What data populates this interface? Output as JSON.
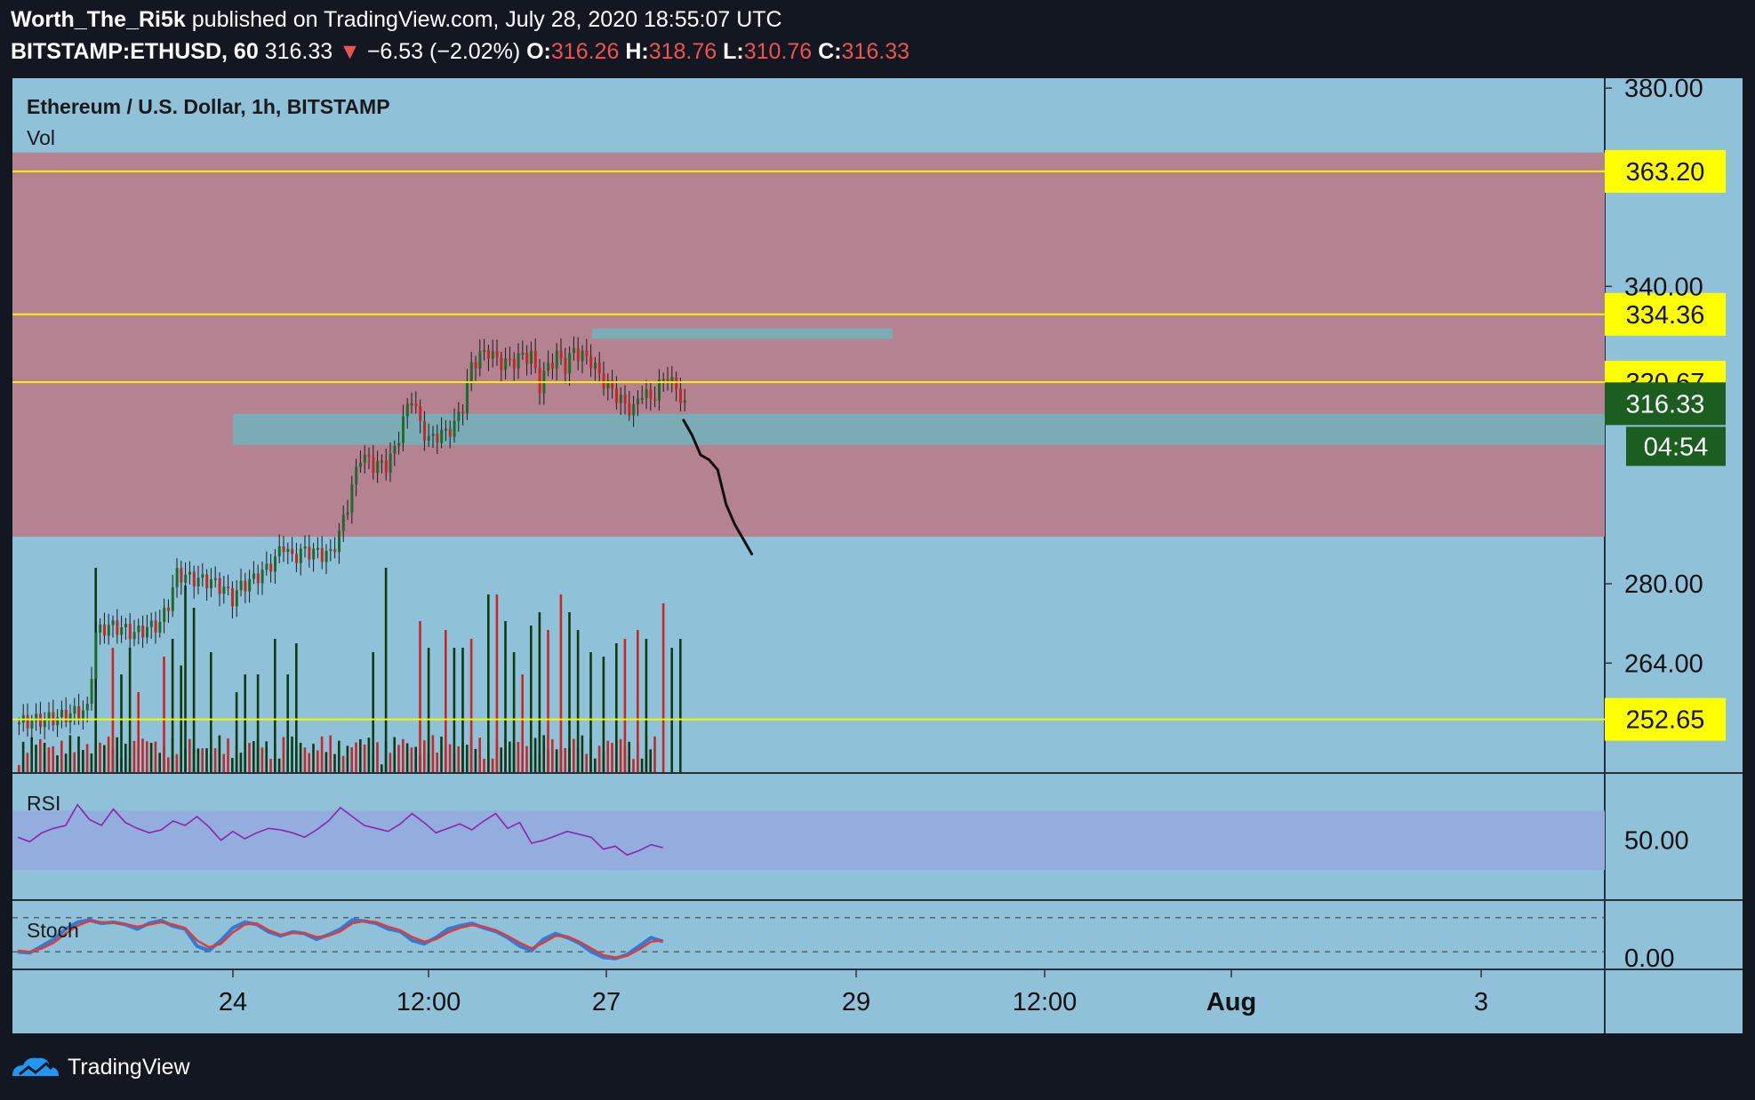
{
  "header": {
    "author": "Worth_The_Ri5k",
    "published_text": "published on TradingView.com, July 28, 2020 18:55:07 UTC",
    "symbol": "BITSTAMP:ETHUSD, 60",
    "last": "316.33",
    "arrow": "▼",
    "change": "−6.53 (−2.02%)",
    "o_label": "O:",
    "o": "316.26",
    "h_label": "H:",
    "h": "318.76",
    "l_label": "L:",
    "l": "310.76",
    "c_label": "C:",
    "c": "316.33"
  },
  "footer": {
    "brand": "TradingView",
    "logo_icon": "tradingview-logo-icon"
  },
  "colors": {
    "background": "#131722",
    "pane": "#8fc1d9",
    "resistance_zone": "#b48290",
    "support_box": "#78adb7",
    "level_line": "#f9f300",
    "up": "#1e6b2a",
    "down": "#c62828",
    "rsi": "#8e24aa",
    "rsi_band": "#93aede",
    "stoch_k": "#2f7bd6",
    "stoch_d": "#e53935",
    "current_price": "#1b5e20"
  },
  "chart_data": {
    "type": "candlestick",
    "title": "Ethereum / U.S. Dollar, 1h, BITSTAMP",
    "volume_label": "Vol",
    "y_ticks": [
      380,
      340,
      280,
      264
    ],
    "y_tick_labels": [
      "380.00",
      "340.00",
      "280.00",
      "264.00"
    ],
    "ylim": [
      242,
      382
    ],
    "x_ticks": [
      "24",
      "12:00",
      "27",
      "29",
      "12:00",
      "Aug",
      "3"
    ],
    "levels": [
      {
        "value": 363.2,
        "label": "363.20"
      },
      {
        "value": 334.36,
        "label": "334.36"
      },
      {
        "value": 320.67,
        "label": "320.67"
      },
      {
        "value": 252.65,
        "label": "252.65"
      }
    ],
    "current_price": {
      "value": 316.33,
      "label": "316.33",
      "countdown": "04:54"
    },
    "resistance_zone": [
      289.5,
      367
    ],
    "support_box": [
      308,
      314.3
    ],
    "top_box": [
      329.4,
      331.5
    ],
    "price_path": [
      [
        0,
        252
      ],
      [
        5,
        252.5
      ],
      [
        9,
        253
      ],
      [
        13,
        254
      ],
      [
        16,
        254.5
      ],
      [
        18,
        270
      ],
      [
        21,
        271.5
      ],
      [
        24,
        271
      ],
      [
        27,
        270
      ],
      [
        30,
        271
      ],
      [
        33,
        272
      ],
      [
        35,
        276
      ],
      [
        37,
        282
      ],
      [
        41,
        281
      ],
      [
        45,
        280.5
      ],
      [
        48,
        279
      ],
      [
        50,
        277
      ],
      [
        52,
        279.5
      ],
      [
        55,
        281
      ],
      [
        58,
        283
      ],
      [
        60,
        285
      ],
      [
        62,
        288
      ],
      [
        64,
        285
      ],
      [
        66,
        286.5
      ],
      [
        69,
        286.5
      ],
      [
        71,
        286
      ],
      [
        73,
        286
      ],
      [
        75,
        290
      ],
      [
        77,
        296
      ],
      [
        80,
        306
      ],
      [
        83,
        304
      ],
      [
        86,
        304
      ],
      [
        88,
        307
      ],
      [
        90,
        313
      ],
      [
        92,
        318
      ],
      [
        94,
        312
      ],
      [
        96,
        309
      ],
      [
        98,
        310
      ],
      [
        100,
        310.5
      ],
      [
        102,
        312
      ],
      [
        104,
        316
      ],
      [
        106,
        324
      ],
      [
        108,
        326
      ],
      [
        110,
        327
      ],
      [
        112,
        325
      ],
      [
        114,
        324.5
      ],
      [
        116,
        325
      ],
      [
        118,
        326
      ],
      [
        120,
        326
      ],
      [
        122,
        320
      ],
      [
        124,
        324
      ],
      [
        126,
        326
      ],
      [
        128,
        324
      ],
      [
        130,
        327
      ],
      [
        132,
        326
      ],
      [
        134,
        325
      ],
      [
        136,
        322
      ],
      [
        138,
        320
      ],
      [
        140,
        318
      ],
      [
        142,
        316
      ],
      [
        144,
        315
      ],
      [
        146,
        319
      ],
      [
        148,
        317
      ],
      [
        150,
        320
      ],
      [
        152,
        322
      ],
      [
        154,
        319
      ],
      [
        156,
        317
      ]
    ],
    "projection": [
      [
        156,
        313
      ],
      [
        158,
        310
      ],
      [
        160,
        306
      ],
      [
        162,
        305
      ],
      [
        164,
        303
      ],
      [
        166,
        296
      ],
      [
        168,
        292
      ],
      [
        170,
        289
      ],
      [
        172,
        286
      ]
    ],
    "volume": [
      [
        15,
        25
      ],
      [
        18,
        230
      ],
      [
        22,
        140
      ],
      [
        24,
        110
      ],
      [
        26,
        140
      ],
      [
        28,
        90
      ],
      [
        34,
        130
      ],
      [
        36,
        150
      ],
      [
        38,
        120
      ],
      [
        39,
        210
      ],
      [
        41,
        185
      ],
      [
        45,
        135
      ],
      [
        51,
        90
      ],
      [
        53,
        110
      ],
      [
        56,
        110
      ],
      [
        60,
        150
      ],
      [
        63,
        110
      ],
      [
        65,
        145
      ],
      [
        83,
        135
      ],
      [
        86,
        230
      ],
      [
        94,
        170
      ],
      [
        96,
        140
      ],
      [
        100,
        160
      ],
      [
        102,
        140
      ],
      [
        104,
        140
      ],
      [
        106,
        150
      ],
      [
        110,
        200
      ],
      [
        112,
        200
      ],
      [
        114,
        170
      ],
      [
        116,
        135
      ],
      [
        118,
        110
      ],
      [
        120,
        165
      ],
      [
        122,
        180
      ],
      [
        124,
        160
      ],
      [
        127,
        200
      ],
      [
        129,
        180
      ],
      [
        131,
        160
      ],
      [
        134,
        135
      ],
      [
        137,
        130
      ],
      [
        140,
        145
      ],
      [
        142,
        150
      ],
      [
        145,
        160
      ],
      [
        147,
        150
      ],
      [
        151,
        190
      ],
      [
        153,
        140
      ],
      [
        155,
        150
      ]
    ],
    "rsi": {
      "label": "RSI",
      "tick_label": "50.00",
      "band": [
        30,
        70
      ],
      "values": [
        52,
        49,
        55,
        58,
        60,
        74,
        64,
        60,
        71,
        62,
        58,
        55,
        57,
        63,
        60,
        66,
        59,
        50,
        56,
        51,
        55,
        58,
        57,
        55,
        52,
        57,
        63,
        72,
        66,
        60,
        58,
        56,
        61,
        68,
        62,
        55,
        58,
        61,
        57,
        63,
        68,
        58,
        62,
        48,
        50,
        53,
        56,
        54,
        52,
        44,
        46,
        40,
        43,
        47,
        45
      ]
    },
    "stoch": {
      "label": "Stoch",
      "tick_label": "0.00",
      "k": [
        20,
        18,
        30,
        42,
        60,
        72,
        76,
        70,
        72,
        68,
        60,
        70,
        75,
        65,
        60,
        30,
        22,
        40,
        62,
        72,
        68,
        55,
        48,
        55,
        52,
        42,
        50,
        60,
        76,
        74,
        70,
        60,
        56,
        40,
        34,
        45,
        60,
        66,
        70,
        62,
        56,
        45,
        30,
        22,
        42,
        52,
        45,
        35,
        20,
        10,
        8,
        15,
        30,
        45,
        38
      ],
      "d": [
        22,
        20,
        26,
        36,
        52,
        66,
        74,
        72,
        71,
        69,
        64,
        68,
        72,
        68,
        62,
        40,
        28,
        34,
        54,
        68,
        70,
        58,
        50,
        53,
        53,
        46,
        48,
        56,
        70,
        74,
        72,
        64,
        58,
        46,
        38,
        42,
        54,
        62,
        67,
        64,
        58,
        48,
        36,
        26,
        36,
        48,
        47,
        38,
        26,
        14,
        10,
        13,
        24,
        38,
        40
      ]
    }
  }
}
